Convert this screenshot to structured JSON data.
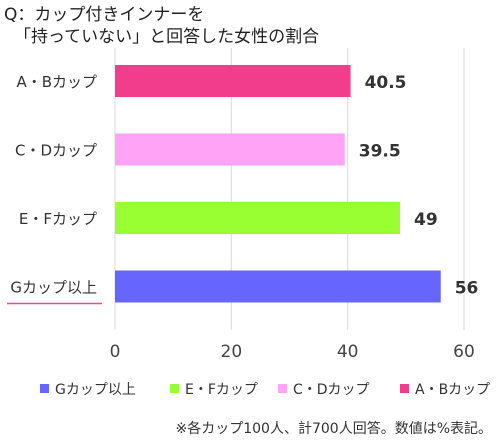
{
  "title": {
    "line1": "Q：カップ付きインナーを",
    "line2": "「持っていない」と回答した女性の割合"
  },
  "footnote": "※各カップ100人、計700人回答。数値は%表記。",
  "chart_data": {
    "type": "bar",
    "orientation": "horizontal",
    "categories": [
      "A・Bカップ",
      "C・Dカップ",
      "E・Fカップ",
      "Gカップ以上"
    ],
    "values": [
      40.5,
      39.5,
      49,
      56
    ],
    "value_labels": [
      "40.5",
      "39.5",
      "49",
      "56"
    ],
    "colors": [
      "#F23C8C",
      "#FFA3F7",
      "#99FF33",
      "#6666FF"
    ],
    "xlim": [
      0,
      60
    ],
    "x_ticks": [
      "0",
      "20",
      "40",
      "60"
    ],
    "x_tick_values": [
      0,
      20,
      40,
      60
    ],
    "grid": true,
    "highlight_category": "Gカップ以上",
    "highlight_color": "#E0509A",
    "legend": {
      "placement": "bottom",
      "entries": [
        "Gカップ以上",
        "E・Fカップ",
        "C・Dカップ",
        "A・Bカップ"
      ],
      "colors": [
        "#6666FF",
        "#99FF33",
        "#FFA3F7",
        "#F23C8C"
      ]
    },
    "title": "",
    "xlabel": "",
    "ylabel": ""
  }
}
